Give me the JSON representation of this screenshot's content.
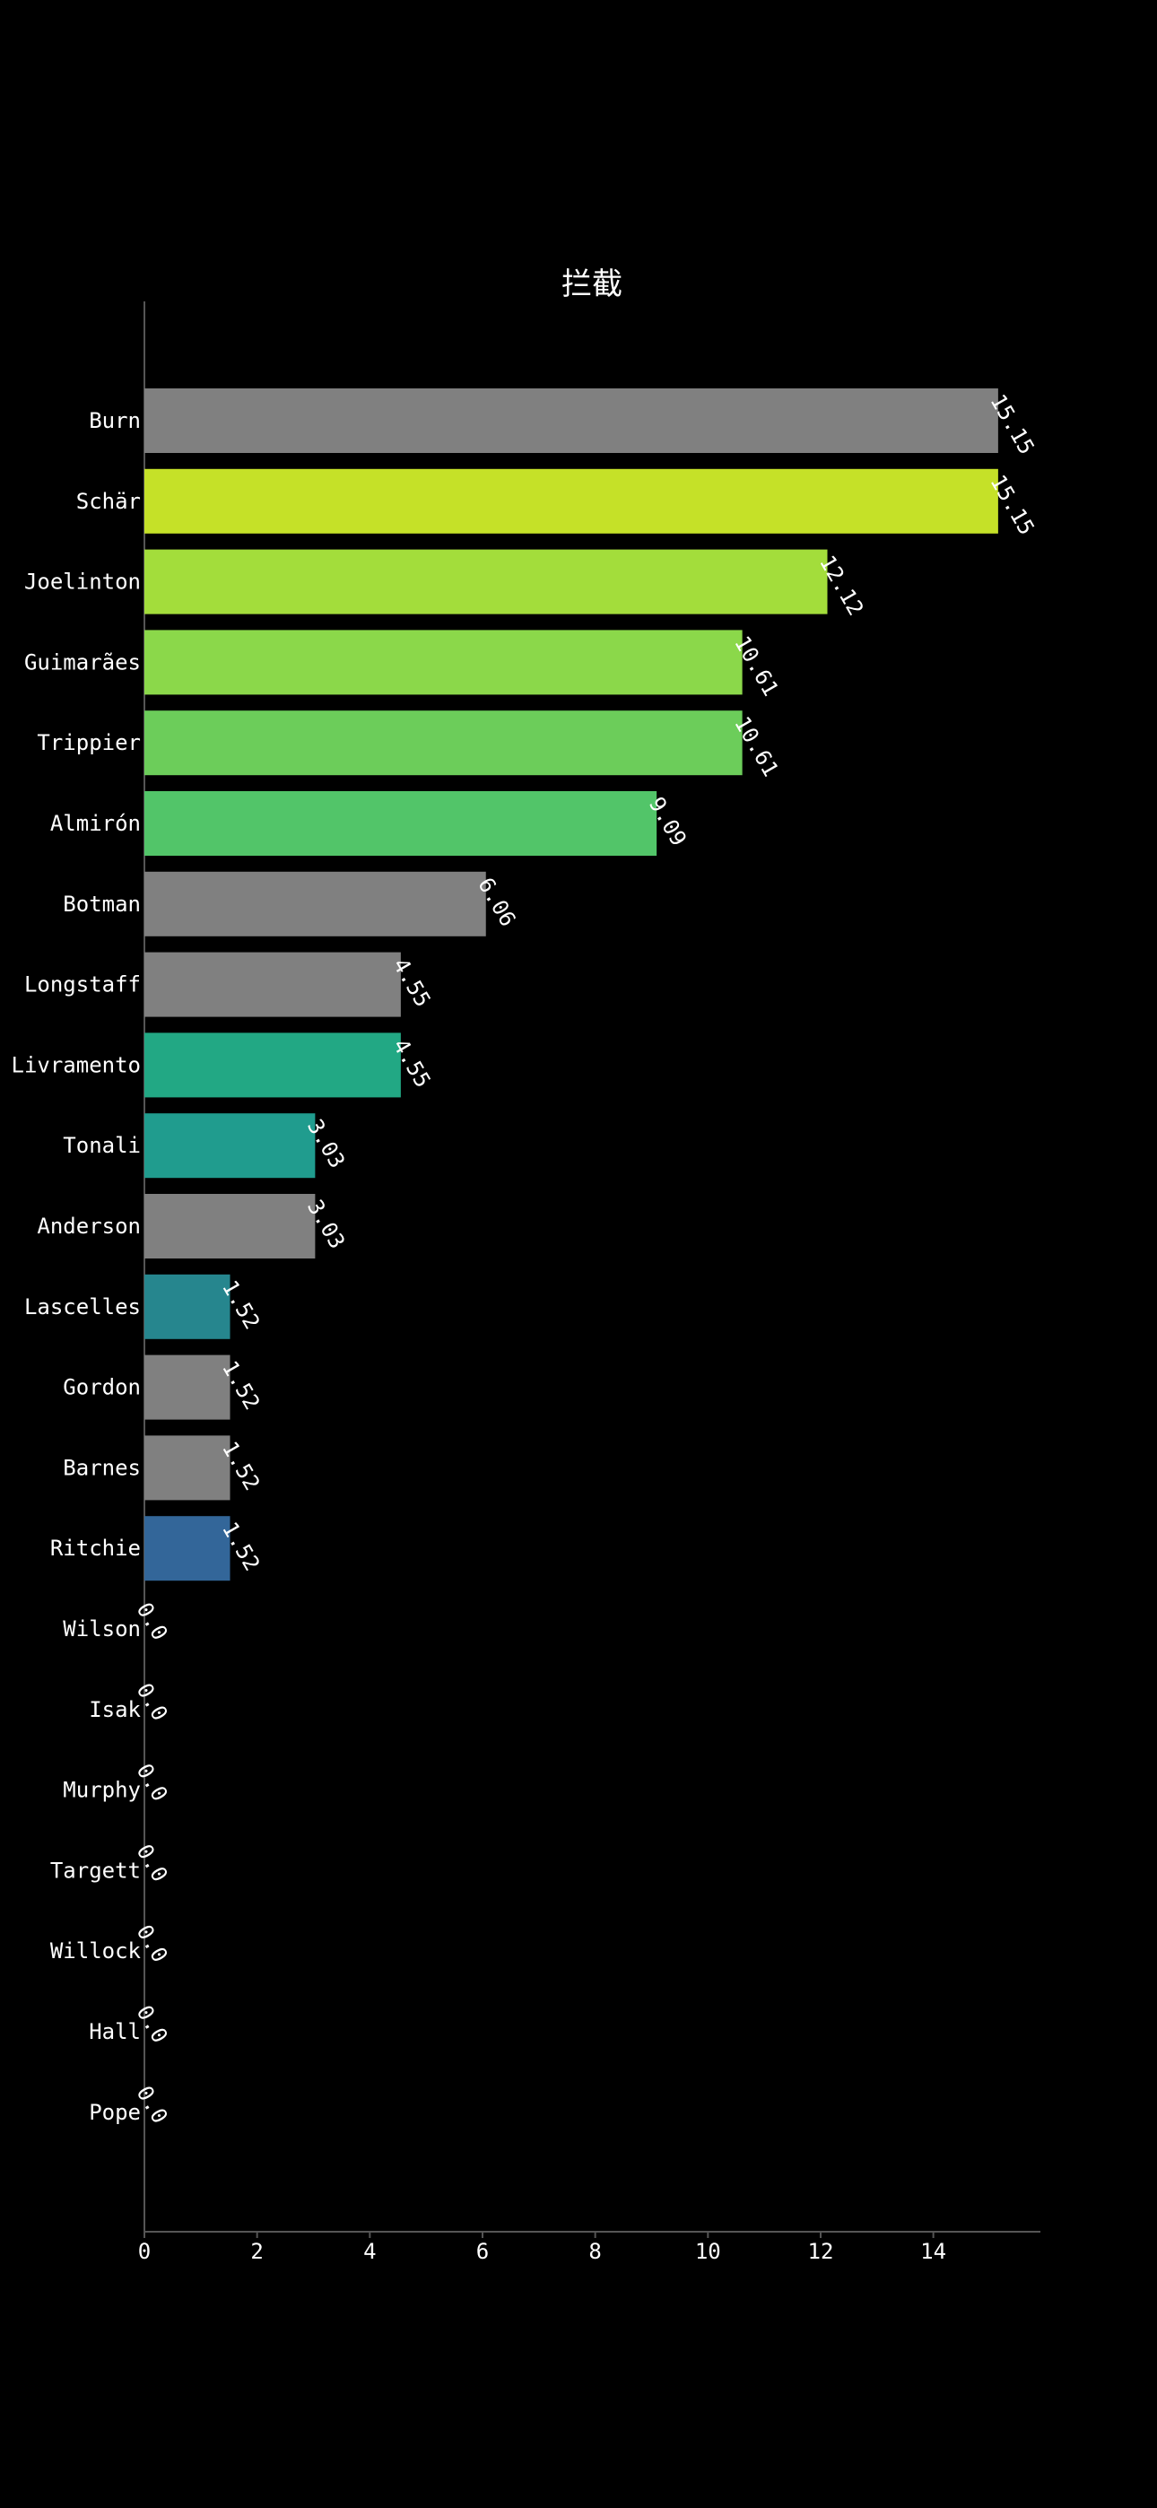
{
  "chart_data": {
    "type": "bar",
    "orientation": "horizontal",
    "title": "拦截",
    "xlabel": "",
    "ylabel": "",
    "xlim": [
      0,
      15.9
    ],
    "xticks": [
      0,
      2,
      4,
      6,
      8,
      10,
      12,
      14
    ],
    "grid": false,
    "categories": [
      "Burn",
      "Schär",
      "Joelinton",
      "Guimarães",
      "Trippier",
      "Almirón",
      "Botman",
      "Longstaff",
      "Livramento",
      "Tonali",
      "Anderson",
      "Lascelles",
      "Gordon",
      "Barnes",
      "Ritchie",
      "Wilson",
      "Isak",
      "Murphy",
      "Targett",
      "Willock",
      "Hall",
      "Pope"
    ],
    "values": [
      15.15,
      15.15,
      12.12,
      10.61,
      10.61,
      9.09,
      6.06,
      4.55,
      4.55,
      3.03,
      3.03,
      1.52,
      1.52,
      1.52,
      1.52,
      0.0,
      0.0,
      0.0,
      0.0,
      0.0,
      0.0,
      0.0
    ],
    "value_labels": [
      "15.15",
      "15.15",
      "12.12",
      "10.61",
      "10.61",
      "9.09",
      "6.06",
      "4.55",
      "4.55",
      "3.03",
      "3.03",
      "1.52",
      "1.52",
      "1.52",
      "1.52",
      "0.0",
      "0.0",
      "0.0",
      "0.0",
      "0.0",
      "0.0",
      "0.0"
    ],
    "colors": [
      "#808080",
      "#c5e128",
      "#a3dd3b",
      "#8bd84a",
      "#6ccd5a",
      "#52c569",
      "#808080",
      "#808080",
      "#22a884",
      "#209c8e",
      "#808080",
      "#26868e",
      "#808080",
      "#808080",
      "#336699",
      "#808080",
      "#808080",
      "#808080",
      "#808080",
      "#808080",
      "#808080",
      "#808080"
    ]
  }
}
